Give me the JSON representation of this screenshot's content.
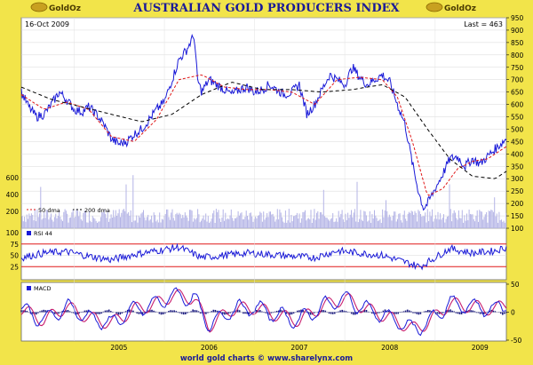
{
  "header": {
    "title": "AUSTRALIAN GOLD PRODUCERS INDEX",
    "logo_left": "GoldOz",
    "logo_right": "GoldOz"
  },
  "footer": {
    "credit": "world gold charts © www.sharelynx.com"
  },
  "colors": {
    "background": "#f2e44a",
    "panel": "#ffffff",
    "price_line": "#1a1ad8",
    "ma50": "#e01919",
    "ma200": "#000000",
    "volume": "#b4b4e6",
    "rsi_bands": "#e01919",
    "macd_line": "#1a1ad8",
    "macd_signal": "#c81e6e",
    "title_text": "#1a1a99"
  },
  "chart_data": [
    {
      "type": "line",
      "panel": "price",
      "date_label": "16-Oct 2009",
      "last_label": "Last = 463",
      "x_range": [
        "2004-06-01",
        "2009-10-16"
      ],
      "ylim": [
        100,
        950
      ],
      "right_ticks": [
        100,
        150,
        200,
        250,
        300,
        350,
        400,
        450,
        500,
        550,
        600,
        650,
        700,
        750,
        800,
        850,
        900,
        950
      ],
      "volume_axis": {
        "ticks": [
          200,
          400,
          600
        ],
        "ylim": [
          0,
          760
        ]
      },
      "series": [
        {
          "name": "price",
          "dates": [
            "2004-06-01",
            "2004-07-01",
            "2004-08-01",
            "2004-09-01",
            "2004-10-01",
            "2004-11-01",
            "2004-12-01",
            "2005-01-01",
            "2005-02-01",
            "2005-03-01",
            "2005-04-01",
            "2005-05-01",
            "2005-06-01",
            "2005-07-01",
            "2005-08-01",
            "2005-09-01",
            "2005-10-01",
            "2005-11-01",
            "2005-12-01",
            "2006-01-01",
            "2006-02-01",
            "2006-03-01",
            "2006-04-01",
            "2006-05-01",
            "2006-05-15",
            "2006-06-01",
            "2006-07-01",
            "2006-08-01",
            "2006-09-01",
            "2006-10-01",
            "2006-11-01",
            "2006-12-01",
            "2007-01-01",
            "2007-02-01",
            "2007-03-01",
            "2007-04-01",
            "2007-05-01",
            "2007-06-01",
            "2007-07-01",
            "2007-08-01",
            "2007-09-01",
            "2007-10-01",
            "2007-11-01",
            "2007-12-01",
            "2008-01-01",
            "2008-02-01",
            "2008-03-01",
            "2008-04-01",
            "2008-05-01",
            "2008-06-01",
            "2008-07-01",
            "2008-08-01",
            "2008-09-01",
            "2008-10-01",
            "2008-10-25",
            "2008-11-15",
            "2008-12-01",
            "2009-01-01",
            "2009-02-01",
            "2009-03-01",
            "2009-04-01",
            "2009-05-01",
            "2009-06-01",
            "2009-07-01",
            "2009-08-01",
            "2009-09-01",
            "2009-10-16"
          ],
          "values": [
            650,
            590,
            550,
            560,
            600,
            650,
            620,
            580,
            570,
            590,
            560,
            520,
            460,
            440,
            450,
            480,
            500,
            540,
            580,
            610,
            700,
            780,
            820,
            880,
            700,
            650,
            700,
            680,
            660,
            640,
            660,
            670,
            650,
            660,
            680,
            660,
            640,
            650,
            680,
            560,
            600,
            660,
            720,
            700,
            680,
            750,
            710,
            680,
            700,
            720,
            690,
            600,
            520,
            360,
            250,
            180,
            200,
            260,
            320,
            380,
            390,
            350,
            380,
            360,
            390,
            420,
            463
          ]
        },
        {
          "name": "50 dma",
          "dates": [
            "2004-06-01",
            "2004-09-01",
            "2004-12-01",
            "2005-03-01",
            "2005-06-01",
            "2005-09-01",
            "2005-12-01",
            "2006-03-01",
            "2006-06-01",
            "2006-09-01",
            "2006-12-01",
            "2007-03-01",
            "2007-06-01",
            "2007-09-01",
            "2007-12-01",
            "2008-03-01",
            "2008-06-01",
            "2008-08-01",
            "2008-10-01",
            "2008-12-01",
            "2009-02-01",
            "2009-04-01",
            "2009-06-01",
            "2009-08-01",
            "2009-10-16"
          ],
          "values": [
            640,
            580,
            610,
            580,
            470,
            450,
            540,
            700,
            720,
            670,
            660,
            660,
            650,
            600,
            700,
            710,
            700,
            630,
            450,
            230,
            260,
            340,
            370,
            380,
            430
          ]
        },
        {
          "name": "200 dma",
          "dates": [
            "2004-06-01",
            "2004-10-01",
            "2005-02-01",
            "2005-06-01",
            "2005-10-01",
            "2006-02-01",
            "2006-06-01",
            "2006-10-01",
            "2007-02-01",
            "2007-06-01",
            "2007-10-01",
            "2008-02-01",
            "2008-06-01",
            "2008-09-01",
            "2008-12-01",
            "2009-03-01",
            "2009-06-01",
            "2009-09-01",
            "2009-10-16"
          ],
          "values": [
            670,
            620,
            590,
            560,
            530,
            560,
            640,
            690,
            660,
            660,
            650,
            660,
            680,
            630,
            500,
            380,
            310,
            300,
            330
          ]
        }
      ]
    },
    {
      "type": "line",
      "panel": "rsi",
      "label": "RSI 44",
      "ylim": [
        0,
        100
      ],
      "left_ticks": [
        25,
        50,
        75,
        100
      ],
      "bands": [
        25,
        75
      ],
      "series": [
        {
          "name": "RSI 44",
          "dates": [
            "2004-06-01",
            "2004-09-01",
            "2004-12-01",
            "2005-03-01",
            "2005-06-01",
            "2005-09-01",
            "2005-12-01",
            "2006-03-01",
            "2006-06-01",
            "2006-09-01",
            "2006-12-01",
            "2007-03-01",
            "2007-06-01",
            "2007-09-01",
            "2007-12-01",
            "2008-03-01",
            "2008-06-01",
            "2008-09-01",
            "2008-11-01",
            "2009-01-01",
            "2009-03-01",
            "2009-06-01",
            "2009-09-01",
            "2009-10-16"
          ],
          "values": [
            45,
            55,
            58,
            48,
            40,
            52,
            60,
            68,
            45,
            50,
            55,
            52,
            48,
            45,
            60,
            55,
            50,
            35,
            25,
            45,
            65,
            55,
            60,
            68
          ]
        }
      ]
    },
    {
      "type": "line",
      "panel": "macd",
      "label": "MACD",
      "ylim": [
        -50,
        50
      ],
      "right_ticks": [
        -50,
        0,
        50
      ],
      "series": [
        {
          "name": "MACD",
          "dates": [
            "2004-06-01",
            "2004-09-01",
            "2004-12-01",
            "2005-03-01",
            "2005-06-01",
            "2005-09-01",
            "2005-12-01",
            "2006-02-01",
            "2006-05-01",
            "2006-07-01",
            "2006-10-01",
            "2007-01-01",
            "2007-04-01",
            "2007-07-01",
            "2007-10-01",
            "2008-01-01",
            "2008-04-01",
            "2008-07-01",
            "2008-10-01",
            "2008-12-01",
            "2009-03-01",
            "2009-06-01",
            "2009-09-01",
            "2009-10-16"
          ],
          "values": [
            5,
            -15,
            10,
            -10,
            -20,
            5,
            15,
            30,
            25,
            -25,
            5,
            8,
            -5,
            -15,
            10,
            25,
            5,
            -10,
            -30,
            -20,
            15,
            10,
            5,
            15
          ]
        }
      ]
    }
  ]
}
